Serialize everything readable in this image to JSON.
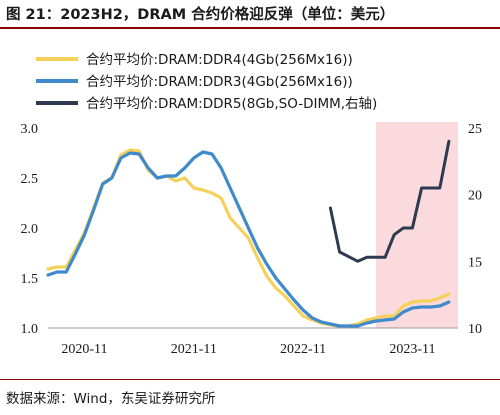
{
  "title": "图 21：2023H2，DRAM 合约价格迎反弹（单位：美元）",
  "source": "数据来源：Wind，东吴证券研究所",
  "colors": {
    "ddr4": "#F5D15B",
    "ddr3": "#3E8ACC",
    "ddr5": "#2E3B4E",
    "highlight": "#FADADD",
    "rule": "#8B0000"
  },
  "chart_data": {
    "type": "line",
    "x_ticks": [
      "2020-11",
      "2021-11",
      "2022-11",
      "2023-11"
    ],
    "y_left_ticks": [
      "1.0",
      "1.5",
      "2.0",
      "2.5",
      "3.0"
    ],
    "y_right_ticks": [
      "10",
      "15",
      "20",
      "25"
    ],
    "y_left_range": [
      1.0,
      3.0
    ],
    "y_right_range": [
      10,
      25
    ],
    "x_range": [
      "2020-07",
      "2024-04"
    ],
    "highlight_span": [
      "2023-07",
      "2024-04"
    ],
    "legend_position": "top-left",
    "series": [
      {
        "name": "合约平均价:DRAM:DDR4(4Gb(256Mx16))",
        "axis": "left",
        "color": "#F5D15B",
        "x": [
          "2020-07",
          "2020-08",
          "2020-09",
          "2020-10",
          "2020-11",
          "2020-12",
          "2021-01",
          "2021-02",
          "2021-03",
          "2021-04",
          "2021-05",
          "2021-06",
          "2021-07",
          "2021-08",
          "2021-09",
          "2021-10",
          "2021-11",
          "2021-12",
          "2022-01",
          "2022-02",
          "2022-03",
          "2022-04",
          "2022-05",
          "2022-06",
          "2022-07",
          "2022-08",
          "2022-09",
          "2022-10",
          "2022-11",
          "2022-12",
          "2023-01",
          "2023-02",
          "2023-03",
          "2023-04",
          "2023-05",
          "2023-06",
          "2023-07",
          "2023-08",
          "2023-09",
          "2023-10",
          "2023-11",
          "2023-12",
          "2024-01",
          "2024-02",
          "2024-03"
        ],
        "values": [
          1.59,
          1.61,
          1.61,
          1.78,
          1.95,
          2.2,
          2.45,
          2.5,
          2.73,
          2.78,
          2.77,
          2.58,
          2.5,
          2.52,
          2.47,
          2.5,
          2.4,
          2.38,
          2.35,
          2.3,
          2.1,
          2.0,
          1.9,
          1.7,
          1.52,
          1.4,
          1.32,
          1.22,
          1.12,
          1.08,
          1.05,
          1.03,
          1.02,
          1.02,
          1.04,
          1.08,
          1.1,
          1.12,
          1.12,
          1.22,
          1.26,
          1.27,
          1.27,
          1.3,
          1.34
        ]
      },
      {
        "name": "合约平均价:DRAM:DDR3(4Gb(256Mx16))",
        "axis": "left",
        "color": "#3E8ACC",
        "x": [
          "2020-07",
          "2020-08",
          "2020-09",
          "2020-10",
          "2020-11",
          "2020-12",
          "2021-01",
          "2021-02",
          "2021-03",
          "2021-04",
          "2021-05",
          "2021-06",
          "2021-07",
          "2021-08",
          "2021-09",
          "2021-10",
          "2021-11",
          "2021-12",
          "2022-01",
          "2022-02",
          "2022-03",
          "2022-04",
          "2022-05",
          "2022-06",
          "2022-07",
          "2022-08",
          "2022-09",
          "2022-10",
          "2022-11",
          "2022-12",
          "2023-01",
          "2023-02",
          "2023-03",
          "2023-04",
          "2023-05",
          "2023-06",
          "2023-07",
          "2023-08",
          "2023-09",
          "2023-10",
          "2023-11",
          "2023-12",
          "2024-01",
          "2024-02",
          "2024-03"
        ],
        "values": [
          1.53,
          1.56,
          1.56,
          1.74,
          1.93,
          2.18,
          2.44,
          2.5,
          2.7,
          2.75,
          2.74,
          2.6,
          2.5,
          2.52,
          2.52,
          2.6,
          2.7,
          2.76,
          2.74,
          2.6,
          2.4,
          2.2,
          2.0,
          1.8,
          1.64,
          1.5,
          1.39,
          1.28,
          1.18,
          1.1,
          1.06,
          1.04,
          1.02,
          1.02,
          1.02,
          1.05,
          1.07,
          1.08,
          1.09,
          1.16,
          1.2,
          1.21,
          1.21,
          1.22,
          1.26
        ]
      },
      {
        "name": "合约平均价:DRAM:DDR5(8Gb,SO-DIMM,右轴)",
        "axis": "right",
        "color": "#2E3B4E",
        "x": [
          "2023-02",
          "2023-03",
          "2023-05",
          "2023-06",
          "2023-07",
          "2023-08",
          "2023-09",
          "2023-10",
          "2023-11",
          "2023-12",
          "2024-01",
          "2024-02",
          "2024-03"
        ],
        "values": [
          19.0,
          15.7,
          15.0,
          15.3,
          15.3,
          15.3,
          17.0,
          17.5,
          17.5,
          20.5,
          20.5,
          20.5,
          24.0
        ]
      }
    ]
  }
}
